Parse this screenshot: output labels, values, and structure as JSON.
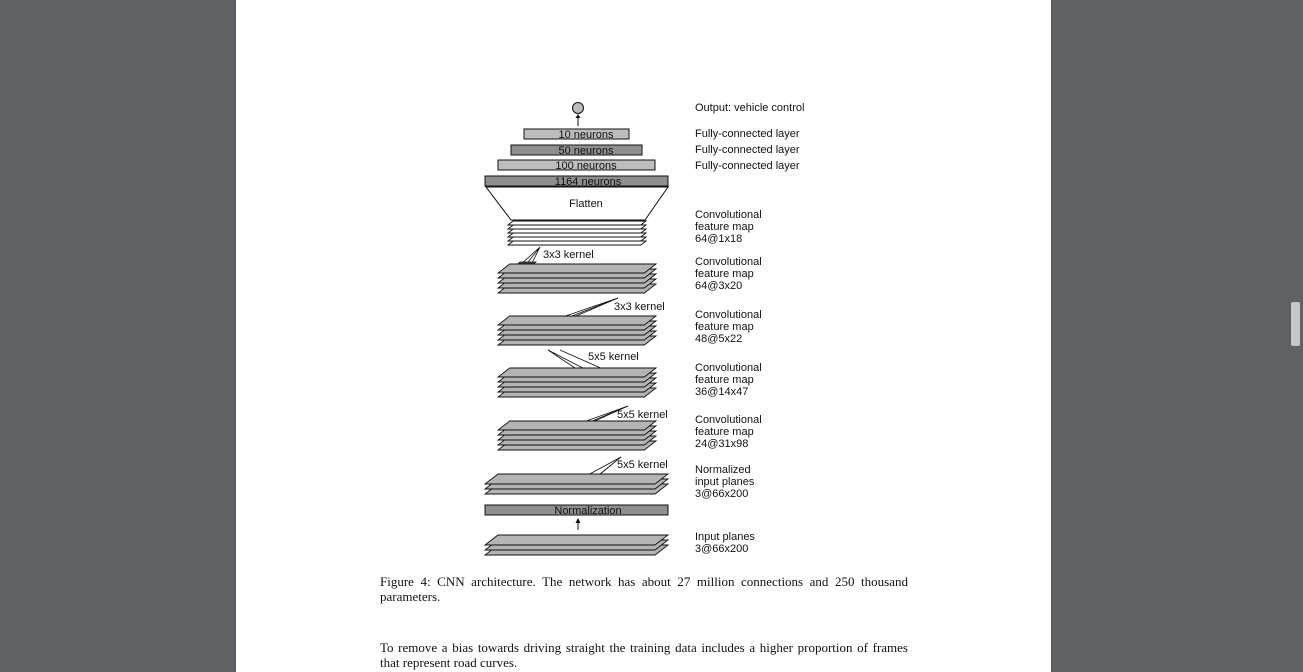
{
  "diagram": {
    "labels": [
      {
        "key": "output",
        "text": "Output: vehicle control"
      },
      {
        "key": "fc3",
        "text": "Fully-connected layer"
      },
      {
        "key": "fc2",
        "text": "Fully-connected layer"
      },
      {
        "key": "fc1",
        "text": "Fully-connected layer"
      },
      {
        "key": "conv5_1",
        "text": "Convolutional"
      },
      {
        "key": "conv5_2",
        "text": "feature map"
      },
      {
        "key": "conv5_3",
        "text": "64@1x18"
      },
      {
        "key": "conv4_1",
        "text": "Convolutional"
      },
      {
        "key": "conv4_2",
        "text": "feature map"
      },
      {
        "key": "conv4_3",
        "text": "64@3x20"
      },
      {
        "key": "conv3_1",
        "text": "Convolutional"
      },
      {
        "key": "conv3_2",
        "text": "feature map"
      },
      {
        "key": "conv3_3",
        "text": "48@5x22"
      },
      {
        "key": "conv2_1",
        "text": "Convolutional"
      },
      {
        "key": "conv2_2",
        "text": "feature map"
      },
      {
        "key": "conv2_3",
        "text": "36@14x47"
      },
      {
        "key": "conv1_1",
        "text": "Convolutional"
      },
      {
        "key": "conv1_2",
        "text": "feature map"
      },
      {
        "key": "conv1_3",
        "text": "24@31x98"
      },
      {
        "key": "norm_1",
        "text": "Normalized"
      },
      {
        "key": "norm_2",
        "text": "input planes"
      },
      {
        "key": "norm_3",
        "text": "3@66x200"
      },
      {
        "key": "input_1",
        "text": "Input planes"
      },
      {
        "key": "input_2",
        "text": "3@66x200"
      }
    ],
    "boxes": {
      "fc_10": "10 neurons",
      "fc_50": "50 neurons",
      "fc_100": "100 neurons",
      "fc_1164": "1164 neurons",
      "flatten": "Flatten",
      "normalization": "Normalization"
    },
    "kernels": {
      "k1": "5x5 kernel",
      "k2": "5x5 kernel",
      "k3": "5x5 kernel",
      "k4": "3x3 kernel",
      "k5": "3x3 kernel"
    }
  },
  "caption": {
    "line1": "Figure 4: CNN architecture.  The network has about 27 million connections and 250 thousand",
    "line2": "parameters."
  },
  "body_text": {
    "line1": "To remove a bias towards driving straight the training data includes a higher proportion of frames",
    "line2": "that represent road curves."
  },
  "colors": {
    "background": "#5f6366",
    "page": "#ffffff",
    "box_light": "#bdbdbd",
    "box_dark": "#8f8f8f",
    "plane": "#b4b4b4"
  }
}
